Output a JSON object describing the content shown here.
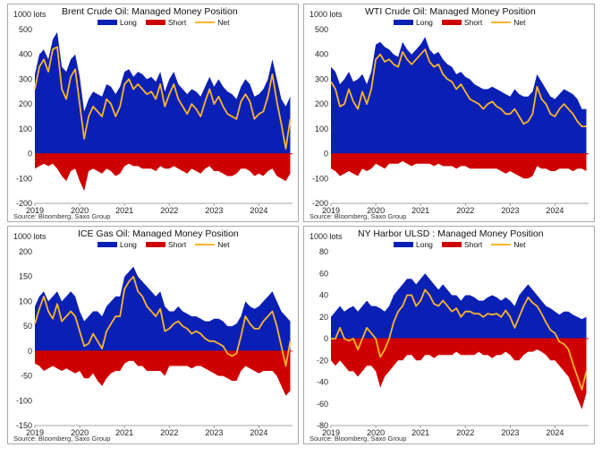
{
  "colors": {
    "long": "#0a20b4",
    "short": "#cf0000",
    "net": "#f9b52c",
    "zero": "#cf0000",
    "axis": "#888888"
  },
  "chart_data": [
    {
      "type": "area",
      "title": "Brent Crude Oil: Managed Money Position",
      "unit_label": "1000 lots",
      "source": "Source: Bloomberg, Saxo Group",
      "legend": [
        "Long",
        "Short",
        "Net"
      ],
      "ylim": [
        -200,
        500
      ],
      "yticks": [
        -200,
        -100,
        0,
        100,
        200,
        300,
        400,
        500
      ],
      "xticks": [
        "2019",
        "2020",
        "2021",
        "2022",
        "2023",
        "2024"
      ],
      "xlim": [
        2019.0,
        2024.75
      ],
      "x": [
        2019.0,
        2019.1,
        2019.2,
        2019.3,
        2019.4,
        2019.5,
        2019.6,
        2019.7,
        2019.8,
        2019.9,
        2020.0,
        2020.1,
        2020.2,
        2020.3,
        2020.4,
        2020.5,
        2020.6,
        2020.7,
        2020.8,
        2020.9,
        2021.0,
        2021.1,
        2021.2,
        2021.3,
        2021.4,
        2021.5,
        2021.6,
        2021.7,
        2021.8,
        2021.9,
        2022.0,
        2022.1,
        2022.2,
        2022.3,
        2022.4,
        2022.5,
        2022.6,
        2022.7,
        2022.8,
        2022.9,
        2023.0,
        2023.1,
        2023.2,
        2023.3,
        2023.4,
        2023.5,
        2023.6,
        2023.7,
        2023.8,
        2023.9,
        2024.0,
        2024.1,
        2024.2,
        2024.3,
        2024.4,
        2024.5,
        2024.6,
        2024.7
      ],
      "series": [
        {
          "name": "Long",
          "values": [
            320,
            400,
            420,
            380,
            460,
            490,
            350,
            330,
            380,
            400,
            310,
            170,
            220,
            250,
            240,
            230,
            280,
            270,
            240,
            270,
            330,
            340,
            310,
            330,
            320,
            300,
            310,
            290,
            330,
            250,
            300,
            330,
            280,
            260,
            240,
            260,
            250,
            230,
            270,
            310,
            270,
            300,
            270,
            250,
            240,
            220,
            270,
            300,
            280,
            230,
            240,
            260,
            300,
            380,
            300,
            220,
            190,
            230
          ]
        },
        {
          "name": "Short",
          "values": [
            -60,
            -50,
            -40,
            -50,
            -40,
            -60,
            -90,
            -110,
            -70,
            -60,
            -110,
            -150,
            -70,
            -60,
            -70,
            -80,
            -60,
            -70,
            -90,
            -80,
            -50,
            -40,
            -50,
            -50,
            -60,
            -60,
            -60,
            -70,
            -50,
            -60,
            -60,
            -50,
            -60,
            -70,
            -80,
            -60,
            -70,
            -80,
            -60,
            -50,
            -70,
            -70,
            -80,
            -90,
            -90,
            -80,
            -60,
            -60,
            -70,
            -90,
            -80,
            -90,
            -70,
            -60,
            -90,
            -100,
            -110,
            -80
          ]
        },
        {
          "name": "Net",
          "values": [
            260,
            350,
            380,
            330,
            420,
            430,
            260,
            220,
            310,
            340,
            200,
            60,
            150,
            190,
            170,
            150,
            220,
            200,
            150,
            190,
            280,
            300,
            260,
            280,
            260,
            240,
            250,
            220,
            280,
            190,
            240,
            280,
            220,
            190,
            160,
            200,
            180,
            150,
            210,
            260,
            200,
            230,
            190,
            160,
            150,
            140,
            210,
            240,
            210,
            140,
            160,
            170,
            230,
            320,
            210,
            120,
            20,
            140
          ]
        }
      ]
    },
    {
      "type": "area",
      "title": "WTI Crude Oil: Managed Money Position",
      "unit_label": "1000 lots",
      "source": "Source: Bloomberg, Saxo Group",
      "legend": [
        "Long",
        "Short",
        "Net"
      ],
      "ylim": [
        -200,
        500
      ],
      "yticks": [
        -200,
        -100,
        0,
        100,
        200,
        300,
        400,
        500
      ],
      "xticks": [
        "2019",
        "2020",
        "2021",
        "2022",
        "2023",
        "2024"
      ],
      "xlim": [
        2019.0,
        2024.75
      ],
      "x": [
        2019.0,
        2019.1,
        2019.2,
        2019.3,
        2019.4,
        2019.5,
        2019.6,
        2019.7,
        2019.8,
        2019.9,
        2020.0,
        2020.1,
        2020.2,
        2020.3,
        2020.4,
        2020.5,
        2020.6,
        2020.7,
        2020.8,
        2020.9,
        2021.0,
        2021.1,
        2021.2,
        2021.3,
        2021.4,
        2021.5,
        2021.6,
        2021.7,
        2021.8,
        2021.9,
        2022.0,
        2022.1,
        2022.2,
        2022.3,
        2022.4,
        2022.5,
        2022.6,
        2022.7,
        2022.8,
        2022.9,
        2023.0,
        2023.1,
        2023.2,
        2023.3,
        2023.4,
        2023.5,
        2023.6,
        2023.7,
        2023.8,
        2023.9,
        2024.0,
        2024.1,
        2024.2,
        2024.3,
        2024.4,
        2024.5,
        2024.6,
        2024.7
      ],
      "series": [
        {
          "name": "Long",
          "values": [
            350,
            330,
            280,
            300,
            330,
            290,
            300,
            320,
            280,
            330,
            440,
            450,
            430,
            420,
            400,
            390,
            450,
            420,
            400,
            420,
            440,
            470,
            420,
            400,
            410,
            380,
            360,
            350,
            320,
            330,
            310,
            300,
            280,
            270,
            260,
            260,
            270,
            260,
            250,
            240,
            230,
            260,
            240,
            230,
            230,
            250,
            320,
            290,
            260,
            230,
            220,
            240,
            260,
            250,
            240,
            220,
            180,
            180
          ]
        },
        {
          "name": "Short",
          "values": [
            -60,
            -70,
            -90,
            -80,
            -70,
            -80,
            -90,
            -60,
            -70,
            -60,
            -40,
            -50,
            -60,
            -40,
            -40,
            -40,
            -30,
            -40,
            -50,
            -40,
            -40,
            -40,
            -40,
            -50,
            -40,
            -50,
            -50,
            -50,
            -60,
            -50,
            -50,
            -60,
            -60,
            -60,
            -60,
            -60,
            -60,
            -60,
            -70,
            -80,
            -70,
            -80,
            -90,
            -100,
            -100,
            -90,
            -50,
            -60,
            -60,
            -70,
            -70,
            -60,
            -60,
            -60,
            -70,
            -60,
            -60,
            -70
          ]
        },
        {
          "name": "Net",
          "values": [
            290,
            260,
            190,
            200,
            260,
            210,
            180,
            250,
            200,
            260,
            380,
            400,
            370,
            380,
            360,
            350,
            410,
            380,
            360,
            380,
            400,
            420,
            370,
            350,
            360,
            320,
            300,
            290,
            260,
            280,
            250,
            220,
            210,
            200,
            180,
            200,
            210,
            190,
            180,
            160,
            160,
            180,
            150,
            120,
            130,
            160,
            270,
            220,
            200,
            160,
            150,
            180,
            200,
            180,
            160,
            130,
            110,
            110
          ]
        }
      ]
    },
    {
      "type": "area",
      "title": "ICE Gas Oil: Managed Money Position",
      "unit_label": "1000 lots",
      "source": "Source: Bloomberg, Saxo Group",
      "legend": [
        "Long",
        "Short",
        "Net"
      ],
      "ylim": [
        -150,
        200
      ],
      "yticks": [
        -150,
        -100,
        -50,
        0,
        50,
        100,
        150,
        200
      ],
      "xticks": [
        "2019",
        "2020",
        "2021",
        "2022",
        "2023",
        "2024"
      ],
      "xlim": [
        2019.0,
        2024.75
      ],
      "x": [
        2019.0,
        2019.1,
        2019.2,
        2019.3,
        2019.4,
        2019.5,
        2019.6,
        2019.7,
        2019.8,
        2019.9,
        2020.0,
        2020.1,
        2020.2,
        2020.3,
        2020.4,
        2020.5,
        2020.6,
        2020.7,
        2020.8,
        2020.9,
        2021.0,
        2021.1,
        2021.2,
        2021.3,
        2021.4,
        2021.5,
        2021.6,
        2021.7,
        2021.8,
        2021.9,
        2022.0,
        2022.1,
        2022.2,
        2022.3,
        2022.4,
        2022.5,
        2022.6,
        2022.7,
        2022.8,
        2022.9,
        2023.0,
        2023.1,
        2023.2,
        2023.3,
        2023.4,
        2023.5,
        2023.6,
        2023.7,
        2023.8,
        2023.9,
        2024.0,
        2024.1,
        2024.2,
        2024.3,
        2024.4,
        2024.5,
        2024.6,
        2024.7
      ],
      "series": [
        {
          "name": "Long",
          "values": [
            90,
            110,
            120,
            100,
            110,
            120,
            100,
            110,
            120,
            110,
            80,
            60,
            70,
            80,
            80,
            70,
            90,
            100,
            110,
            110,
            150,
            160,
            170,
            150,
            140,
            130,
            120,
            110,
            120,
            90,
            80,
            80,
            90,
            80,
            75,
            70,
            70,
            65,
            60,
            60,
            65,
            65,
            60,
            50,
            50,
            55,
            70,
            100,
            90,
            85,
            90,
            100,
            110,
            120,
            100,
            80,
            70,
            60
          ]
        },
        {
          "name": "Short",
          "values": [
            -25,
            -30,
            -40,
            -35,
            -30,
            -35,
            -40,
            -35,
            -40,
            -45,
            -40,
            -55,
            -55,
            -45,
            -60,
            -70,
            -55,
            -45,
            -40,
            -40,
            -25,
            -20,
            -20,
            -30,
            -30,
            -40,
            -40,
            -40,
            -40,
            -50,
            -30,
            -30,
            -30,
            -30,
            -30,
            -35,
            -30,
            -30,
            -35,
            -40,
            -45,
            -50,
            -50,
            -55,
            -60,
            -60,
            -40,
            -30,
            -35,
            -40,
            -45,
            -40,
            -40,
            -40,
            -50,
            -70,
            -90,
            -80
          ]
        },
        {
          "name": "Net",
          "values": [
            55,
            85,
            110,
            80,
            65,
            95,
            60,
            70,
            80,
            70,
            40,
            10,
            15,
            35,
            20,
            5,
            40,
            55,
            70,
            70,
            125,
            140,
            150,
            120,
            110,
            90,
            80,
            70,
            85,
            40,
            45,
            55,
            60,
            50,
            45,
            35,
            40,
            35,
            25,
            20,
            20,
            15,
            10,
            -5,
            -10,
            -5,
            30,
            70,
            55,
            45,
            45,
            60,
            70,
            80,
            50,
            10,
            -30,
            20
          ]
        }
      ]
    },
    {
      "type": "area",
      "title": "NY Harbor ULSD : Managed Money Position",
      "unit_label": "1000 lots",
      "source": "Source: Bloomberg, Saxo Group",
      "legend": [
        "Long",
        "Short",
        "Net"
      ],
      "ylim": [
        -80,
        80
      ],
      "yticks": [
        -80,
        -60,
        -40,
        -20,
        0,
        20,
        40,
        60,
        80
      ],
      "xticks": [
        "2019",
        "2020",
        "2021",
        "2022",
        "2023",
        "2024"
      ],
      "xlim": [
        2019.0,
        2024.75
      ],
      "x": [
        2019.0,
        2019.1,
        2019.2,
        2019.3,
        2019.4,
        2019.5,
        2019.6,
        2019.7,
        2019.8,
        2019.9,
        2020.0,
        2020.1,
        2020.2,
        2020.3,
        2020.4,
        2020.5,
        2020.6,
        2020.7,
        2020.8,
        2020.9,
        2021.0,
        2021.1,
        2021.2,
        2021.3,
        2021.4,
        2021.5,
        2021.6,
        2021.7,
        2021.8,
        2021.9,
        2022.0,
        2022.1,
        2022.2,
        2022.3,
        2022.4,
        2022.5,
        2022.6,
        2022.7,
        2022.8,
        2022.9,
        2023.0,
        2023.1,
        2023.2,
        2023.3,
        2023.4,
        2023.5,
        2023.6,
        2023.7,
        2023.8,
        2023.9,
        2024.0,
        2024.1,
        2024.2,
        2024.3,
        2024.4,
        2024.5,
        2024.6,
        2024.7
      ],
      "series": [
        {
          "name": "Long",
          "values": [
            20,
            25,
            30,
            25,
            28,
            30,
            25,
            30,
            35,
            30,
            30,
            28,
            25,
            30,
            40,
            45,
            50,
            55,
            55,
            50,
            55,
            60,
            55,
            50,
            45,
            50,
            45,
            40,
            40,
            35,
            40,
            40,
            38,
            35,
            35,
            38,
            40,
            38,
            35,
            38,
            35,
            30,
            40,
            45,
            50,
            45,
            40,
            35,
            30,
            28,
            25,
            22,
            25,
            25,
            22,
            20,
            18,
            20
          ]
        },
        {
          "name": "Short",
          "values": [
            -20,
            -25,
            -20,
            -25,
            -30,
            -30,
            -35,
            -30,
            -25,
            -25,
            -30,
            -45,
            -35,
            -30,
            -25,
            -20,
            -20,
            -15,
            -15,
            -20,
            -20,
            -15,
            -15,
            -18,
            -15,
            -15,
            -15,
            -15,
            -12,
            -15,
            -15,
            -15,
            -15,
            -12,
            -15,
            -15,
            -18,
            -15,
            -15,
            -12,
            -15,
            -20,
            -20,
            -15,
            -12,
            -12,
            -10,
            -12,
            -15,
            -20,
            -20,
            -25,
            -30,
            -35,
            -45,
            -55,
            -65,
            -50
          ]
        },
        {
          "name": "Net",
          "values": [
            0,
            0,
            10,
            0,
            -2,
            0,
            -10,
            0,
            10,
            5,
            0,
            -17,
            -10,
            0,
            15,
            25,
            30,
            40,
            40,
            30,
            35,
            45,
            40,
            32,
            30,
            35,
            30,
            25,
            28,
            20,
            25,
            25,
            23,
            23,
            20,
            23,
            22,
            23,
            20,
            26,
            20,
            10,
            20,
            30,
            38,
            33,
            30,
            23,
            15,
            8,
            5,
            -3,
            -5,
            -10,
            -23,
            -35,
            -47,
            -30
          ]
        }
      ]
    }
  ]
}
